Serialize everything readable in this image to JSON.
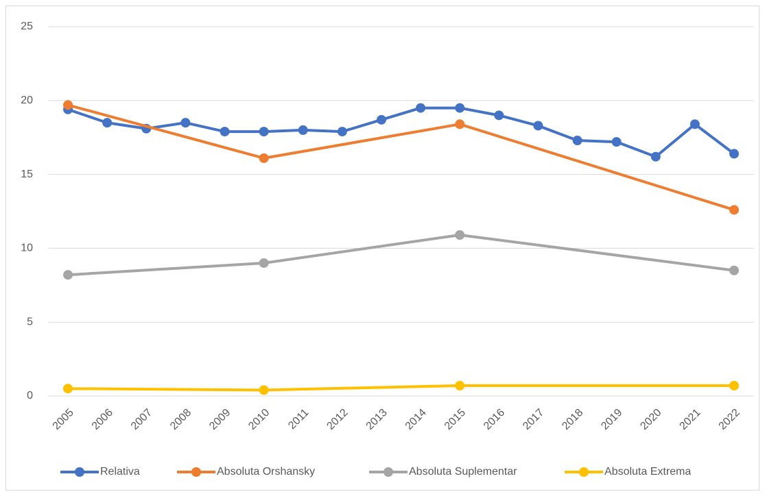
{
  "chart_data": {
    "type": "line",
    "categories": [
      "2005",
      "2006",
      "2007",
      "2008",
      "2009",
      "2010",
      "2011",
      "2012",
      "2013",
      "2014",
      "2015",
      "2016",
      "2017",
      "2018",
      "2019",
      "2020",
      "2021",
      "2022"
    ],
    "series": [
      {
        "name": "Relativa",
        "color": "#4472c4",
        "values": [
          19.4,
          18.5,
          18.1,
          18.5,
          17.9,
          17.9,
          18.0,
          17.9,
          18.7,
          19.5,
          19.5,
          19.0,
          18.3,
          17.3,
          17.2,
          16.2,
          18.4,
          16.4
        ]
      },
      {
        "name": "Absoluta Orshansky",
        "color": "#ed7d31",
        "values": [
          19.7,
          null,
          null,
          null,
          null,
          16.1,
          null,
          null,
          null,
          null,
          18.4,
          null,
          null,
          null,
          null,
          null,
          null,
          12.6
        ]
      },
      {
        "name": "Absoluta Suplementar",
        "color": "#a5a5a5",
        "values": [
          8.2,
          null,
          null,
          null,
          null,
          9.0,
          null,
          null,
          null,
          null,
          10.9,
          null,
          null,
          null,
          null,
          null,
          null,
          8.5
        ]
      },
      {
        "name": "Absoluta Extrema",
        "color": "#ffc000",
        "values": [
          0.5,
          null,
          null,
          null,
          null,
          0.4,
          null,
          null,
          null,
          null,
          0.7,
          null,
          null,
          null,
          null,
          null,
          null,
          0.7
        ]
      }
    ],
    "ylim": [
      0,
      25
    ],
    "yticks": [
      0,
      5,
      10,
      15,
      20,
      25
    ],
    "grid": true,
    "legend": "bottom"
  }
}
